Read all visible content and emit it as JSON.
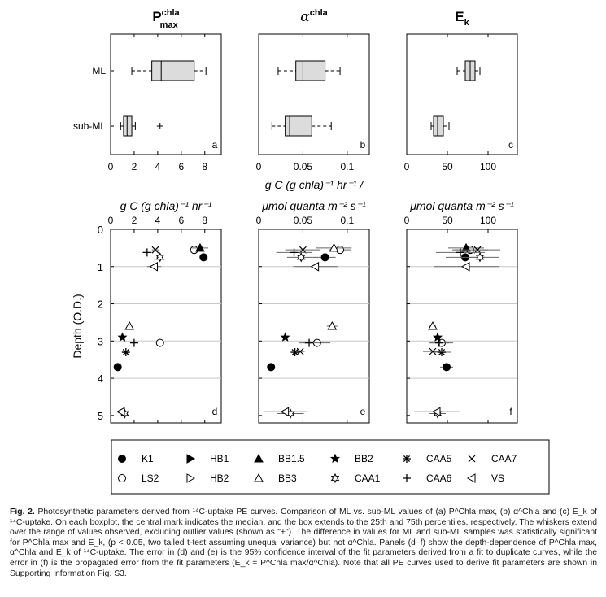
{
  "chart_data": [
    {
      "type": "boxplot",
      "panel": "a",
      "title": {
        "main": "P",
        "sup": "chla",
        "sub": "max"
      },
      "categories": [
        "ML",
        "sub-ML"
      ],
      "boxes": [
        {
          "category": "ML",
          "whisker_low": 1.8,
          "q1": 3.5,
          "median": 4.3,
          "q3": 7.1,
          "whisker_high": 8.1,
          "outliers": []
        },
        {
          "category": "sub-ML",
          "whisker_low": 0.85,
          "q1": 1.1,
          "median": 1.4,
          "q3": 1.8,
          "whisker_high": 2.1,
          "outliers": [
            4.2
          ]
        }
      ],
      "xlim": [
        0,
        9.4
      ],
      "xticks": [
        "0",
        "2",
        "4",
        "6",
        "8"
      ]
    },
    {
      "type": "boxplot",
      "panel": "b",
      "title": {
        "main": "α",
        "sup": "chla",
        "sub": ""
      },
      "categories": [
        "ML",
        "sub-ML"
      ],
      "boxes": [
        {
          "category": "ML",
          "whisker_low": 0.022,
          "q1": 0.042,
          "median": 0.05,
          "q3": 0.075,
          "whisker_high": 0.092,
          "outliers": []
        },
        {
          "category": "sub-ML",
          "whisker_low": 0.015,
          "q1": 0.03,
          "median": 0.035,
          "q3": 0.06,
          "whisker_high": 0.082,
          "outliers": []
        }
      ],
      "xlim": [
        0,
        0.125
      ],
      "xticks": [
        "0",
        "0.05",
        "0.1"
      ]
    },
    {
      "type": "boxplot",
      "panel": "c",
      "title": {
        "main": "E",
        "sup": "",
        "sub": "k"
      },
      "categories": [
        "ML",
        "sub-ML"
      ],
      "boxes": [
        {
          "category": "ML",
          "whisker_low": 62,
          "q1": 72,
          "median": 78,
          "q3": 84,
          "whisker_high": 90,
          "outliers": []
        },
        {
          "category": "sub-ML",
          "whisker_low": 30,
          "q1": 33,
          "median": 38,
          "q3": 45,
          "whisker_high": 52,
          "outliers": []
        }
      ],
      "xlim": [
        0,
        136
      ],
      "xticks": [
        "0",
        "50",
        "100"
      ]
    },
    {
      "type": "scatter",
      "panel": "d",
      "xlabel": "g C (g chla)⁻¹ hr⁻¹",
      "ylabel": "Depth (O.D.)",
      "xlim": [
        0,
        9.4
      ],
      "ylim": [
        0,
        5.2
      ],
      "xticks": [
        "0",
        "2",
        "4",
        "6",
        "8"
      ],
      "yticks": [
        "0",
        "1",
        "2",
        "3",
        "4",
        "5"
      ],
      "points": [
        {
          "station": "K1",
          "x": 7.9,
          "y": 0.75,
          "xerr": 0.2
        },
        {
          "station": "K1",
          "x": 0.6,
          "y": 3.7,
          "xerr": 0.1
        },
        {
          "station": "LS2",
          "x": 7.1,
          "y": 0.55,
          "xerr": 0.3
        },
        {
          "station": "LS2",
          "x": 4.2,
          "y": 3.05,
          "xerr": 0.1
        },
        {
          "station": "BB1.5",
          "x": 7.6,
          "y": 0.5,
          "xerr": 0.7
        },
        {
          "station": "BB3",
          "x": 1.6,
          "y": 2.6,
          "xerr": 0.1
        },
        {
          "station": "BB2",
          "x": 1.0,
          "y": 2.9,
          "xerr": 0.1
        },
        {
          "station": "CAA5",
          "x": 1.3,
          "y": 3.3,
          "xerr": 0.2
        },
        {
          "station": "CAA7",
          "x": 3.8,
          "y": 0.55,
          "xerr": 0.3
        },
        {
          "station": "CAA1",
          "x": 4.2,
          "y": 0.75,
          "xerr": 0.3
        },
        {
          "station": "CAA1",
          "x": 1.2,
          "y": 4.95,
          "xerr": 0.1
        },
        {
          "station": "CAA6",
          "x": 3.1,
          "y": 0.62,
          "xerr": 0.4
        },
        {
          "station": "CAA6",
          "x": 2.0,
          "y": 3.05,
          "xerr": 0.3
        },
        {
          "station": "VS",
          "x": 3.7,
          "y": 1.0,
          "xerr": 0.6
        },
        {
          "station": "VS",
          "x": 0.9,
          "y": 4.9,
          "xerr": 0.3
        }
      ]
    },
    {
      "type": "scatter",
      "panel": "e",
      "xlim": [
        0,
        0.125
      ],
      "ylim": [
        0,
        5.2
      ],
      "xticks": [
        "0",
        "0.05",
        "0.1"
      ],
      "points": [
        {
          "station": "K1",
          "x": 0.075,
          "y": 0.75,
          "xerr": 0.012
        },
        {
          "station": "K1",
          "x": 0.014,
          "y": 3.7,
          "xerr": 0.003
        },
        {
          "station": "LS2",
          "x": 0.092,
          "y": 0.55,
          "xerr": 0.012
        },
        {
          "station": "LS2",
          "x": 0.066,
          "y": 3.05,
          "xerr": 0.015
        },
        {
          "station": "BB3",
          "x": 0.085,
          "y": 0.5,
          "xerr": 0.02
        },
        {
          "station": "BB3",
          "x": 0.083,
          "y": 2.6,
          "xerr": 0.006
        },
        {
          "station": "BB2",
          "x": 0.03,
          "y": 2.9,
          "xerr": 0.002
        },
        {
          "station": "CAA5",
          "x": 0.041,
          "y": 3.3,
          "xerr": 0.006
        },
        {
          "station": "CAA7",
          "x": 0.05,
          "y": 0.55,
          "xerr": 0.02
        },
        {
          "station": "CAA7",
          "x": 0.047,
          "y": 3.28,
          "xerr": 0.005
        },
        {
          "station": "CAA1",
          "x": 0.048,
          "y": 0.75,
          "xerr": 0.016
        },
        {
          "station": "CAA1",
          "x": 0.036,
          "y": 4.95,
          "xerr": 0.015
        },
        {
          "station": "CAA6",
          "x": 0.04,
          "y": 0.62,
          "xerr": 0.02
        },
        {
          "station": "CAA6",
          "x": 0.057,
          "y": 3.05,
          "xerr": 0.012
        },
        {
          "station": "VS",
          "x": 0.064,
          "y": 1.0,
          "xerr": 0.025
        },
        {
          "station": "VS",
          "x": 0.03,
          "y": 4.9,
          "xerr": 0.025
        }
      ]
    },
    {
      "type": "scatter",
      "panel": "f",
      "xlim": [
        0,
        136
      ],
      "ylim": [
        0,
        5.2
      ],
      "xticks": [
        "0",
        "50",
        "100"
      ],
      "points": [
        {
          "station": "K1",
          "x": 72,
          "y": 0.75,
          "xerr": 24
        },
        {
          "station": "K1",
          "x": 49,
          "y": 3.7,
          "xerr": 8
        },
        {
          "station": "LS2",
          "x": 78,
          "y": 0.55,
          "xerr": 22
        },
        {
          "station": "LS2",
          "x": 43,
          "y": 3.05,
          "xerr": 14
        },
        {
          "station": "BB1.5",
          "x": 73,
          "y": 0.5,
          "xerr": 22
        },
        {
          "station": "BB3",
          "x": 32,
          "y": 2.6,
          "xerr": 4
        },
        {
          "station": "BB2",
          "x": 38,
          "y": 2.9,
          "xerr": 4
        },
        {
          "station": "CAA5",
          "x": 43,
          "y": 3.3,
          "xerr": 12
        },
        {
          "station": "CAA7",
          "x": 87,
          "y": 0.55,
          "xerr": 28
        },
        {
          "station": "CAA7",
          "x": 32,
          "y": 3.28,
          "xerr": 12
        },
        {
          "station": "CAA1",
          "x": 90,
          "y": 0.75,
          "xerr": 24
        },
        {
          "station": "CAA1",
          "x": 38,
          "y": 4.95,
          "xerr": 10
        },
        {
          "station": "CAA6",
          "x": 66,
          "y": 0.62,
          "xerr": 30
        },
        {
          "station": "CAA6",
          "x": 40,
          "y": 3.05,
          "xerr": 12
        },
        {
          "station": "VS",
          "x": 73,
          "y": 1.0,
          "xerr": 40
        },
        {
          "station": "VS",
          "x": 37,
          "y": 4.9,
          "xerr": 28
        }
      ]
    }
  ],
  "axis_labels": {
    "row1_line1": "g C (g chla)⁻¹ hr⁻¹ /",
    "row1_line2_left": "g C (g chla)⁻¹ hr⁻¹",
    "row1_line2_mid": "μmol quanta m⁻² s⁻¹",
    "row1_line2_right": "μmol quanta m⁻² s⁻¹",
    "depth": "Depth (O.D.)"
  },
  "legend": [
    {
      "label": "K1",
      "marker": "circle-filled"
    },
    {
      "label": "HB1",
      "marker": "triangle-right-filled"
    },
    {
      "label": "BB1.5",
      "marker": "triangle-up-filled"
    },
    {
      "label": "BB2",
      "marker": "star-filled"
    },
    {
      "label": "CAA5",
      "marker": "asterisk"
    },
    {
      "label": "CAA7",
      "marker": "cross"
    },
    {
      "label": "LS2",
      "marker": "circle-open"
    },
    {
      "label": "HB2",
      "marker": "triangle-right-open"
    },
    {
      "label": "BB3",
      "marker": "triangle-up-open"
    },
    {
      "label": "CAA1",
      "marker": "hexagram-open"
    },
    {
      "label": "CAA6",
      "marker": "plus"
    },
    {
      "label": "VS",
      "marker": "triangle-left-open"
    }
  ],
  "caption": {
    "label": "Fig. 2.",
    "text": "Photosynthetic parameters derived from ¹⁴C-uptake PE curves. Comparison of ML vs. sub-ML values of (a) P^Chla max, (b) α^Chla and (c) E_k of ¹⁴C-uptake. On each boxplot, the central mark indicates the median, and the box extends to the 25th and 75th percentiles, respectively. The whiskers extend over the range of values observed, excluding outlier values (shown as \"+\"). The difference in values for ML and sub-ML samples was statistically significant for P^Chla max and E_k, (p < 0.05, two tailed t-test assuming unequal variance) but not α^Chla. Panels (d–f) show the depth-dependence of P^Chla max, α^Chla and E_k of ¹⁴C-uptake. The error in (d) and (e) is the 95% confidence interval of the fit parameters derived from a fit to duplicate curves, while the error in (f) is the propagated error from the fit parameters (E_k = P^Chla max/α^Chla). Note that all PE curves used to derive fit parameters are shown in Supporting Information Fig. S3."
  }
}
